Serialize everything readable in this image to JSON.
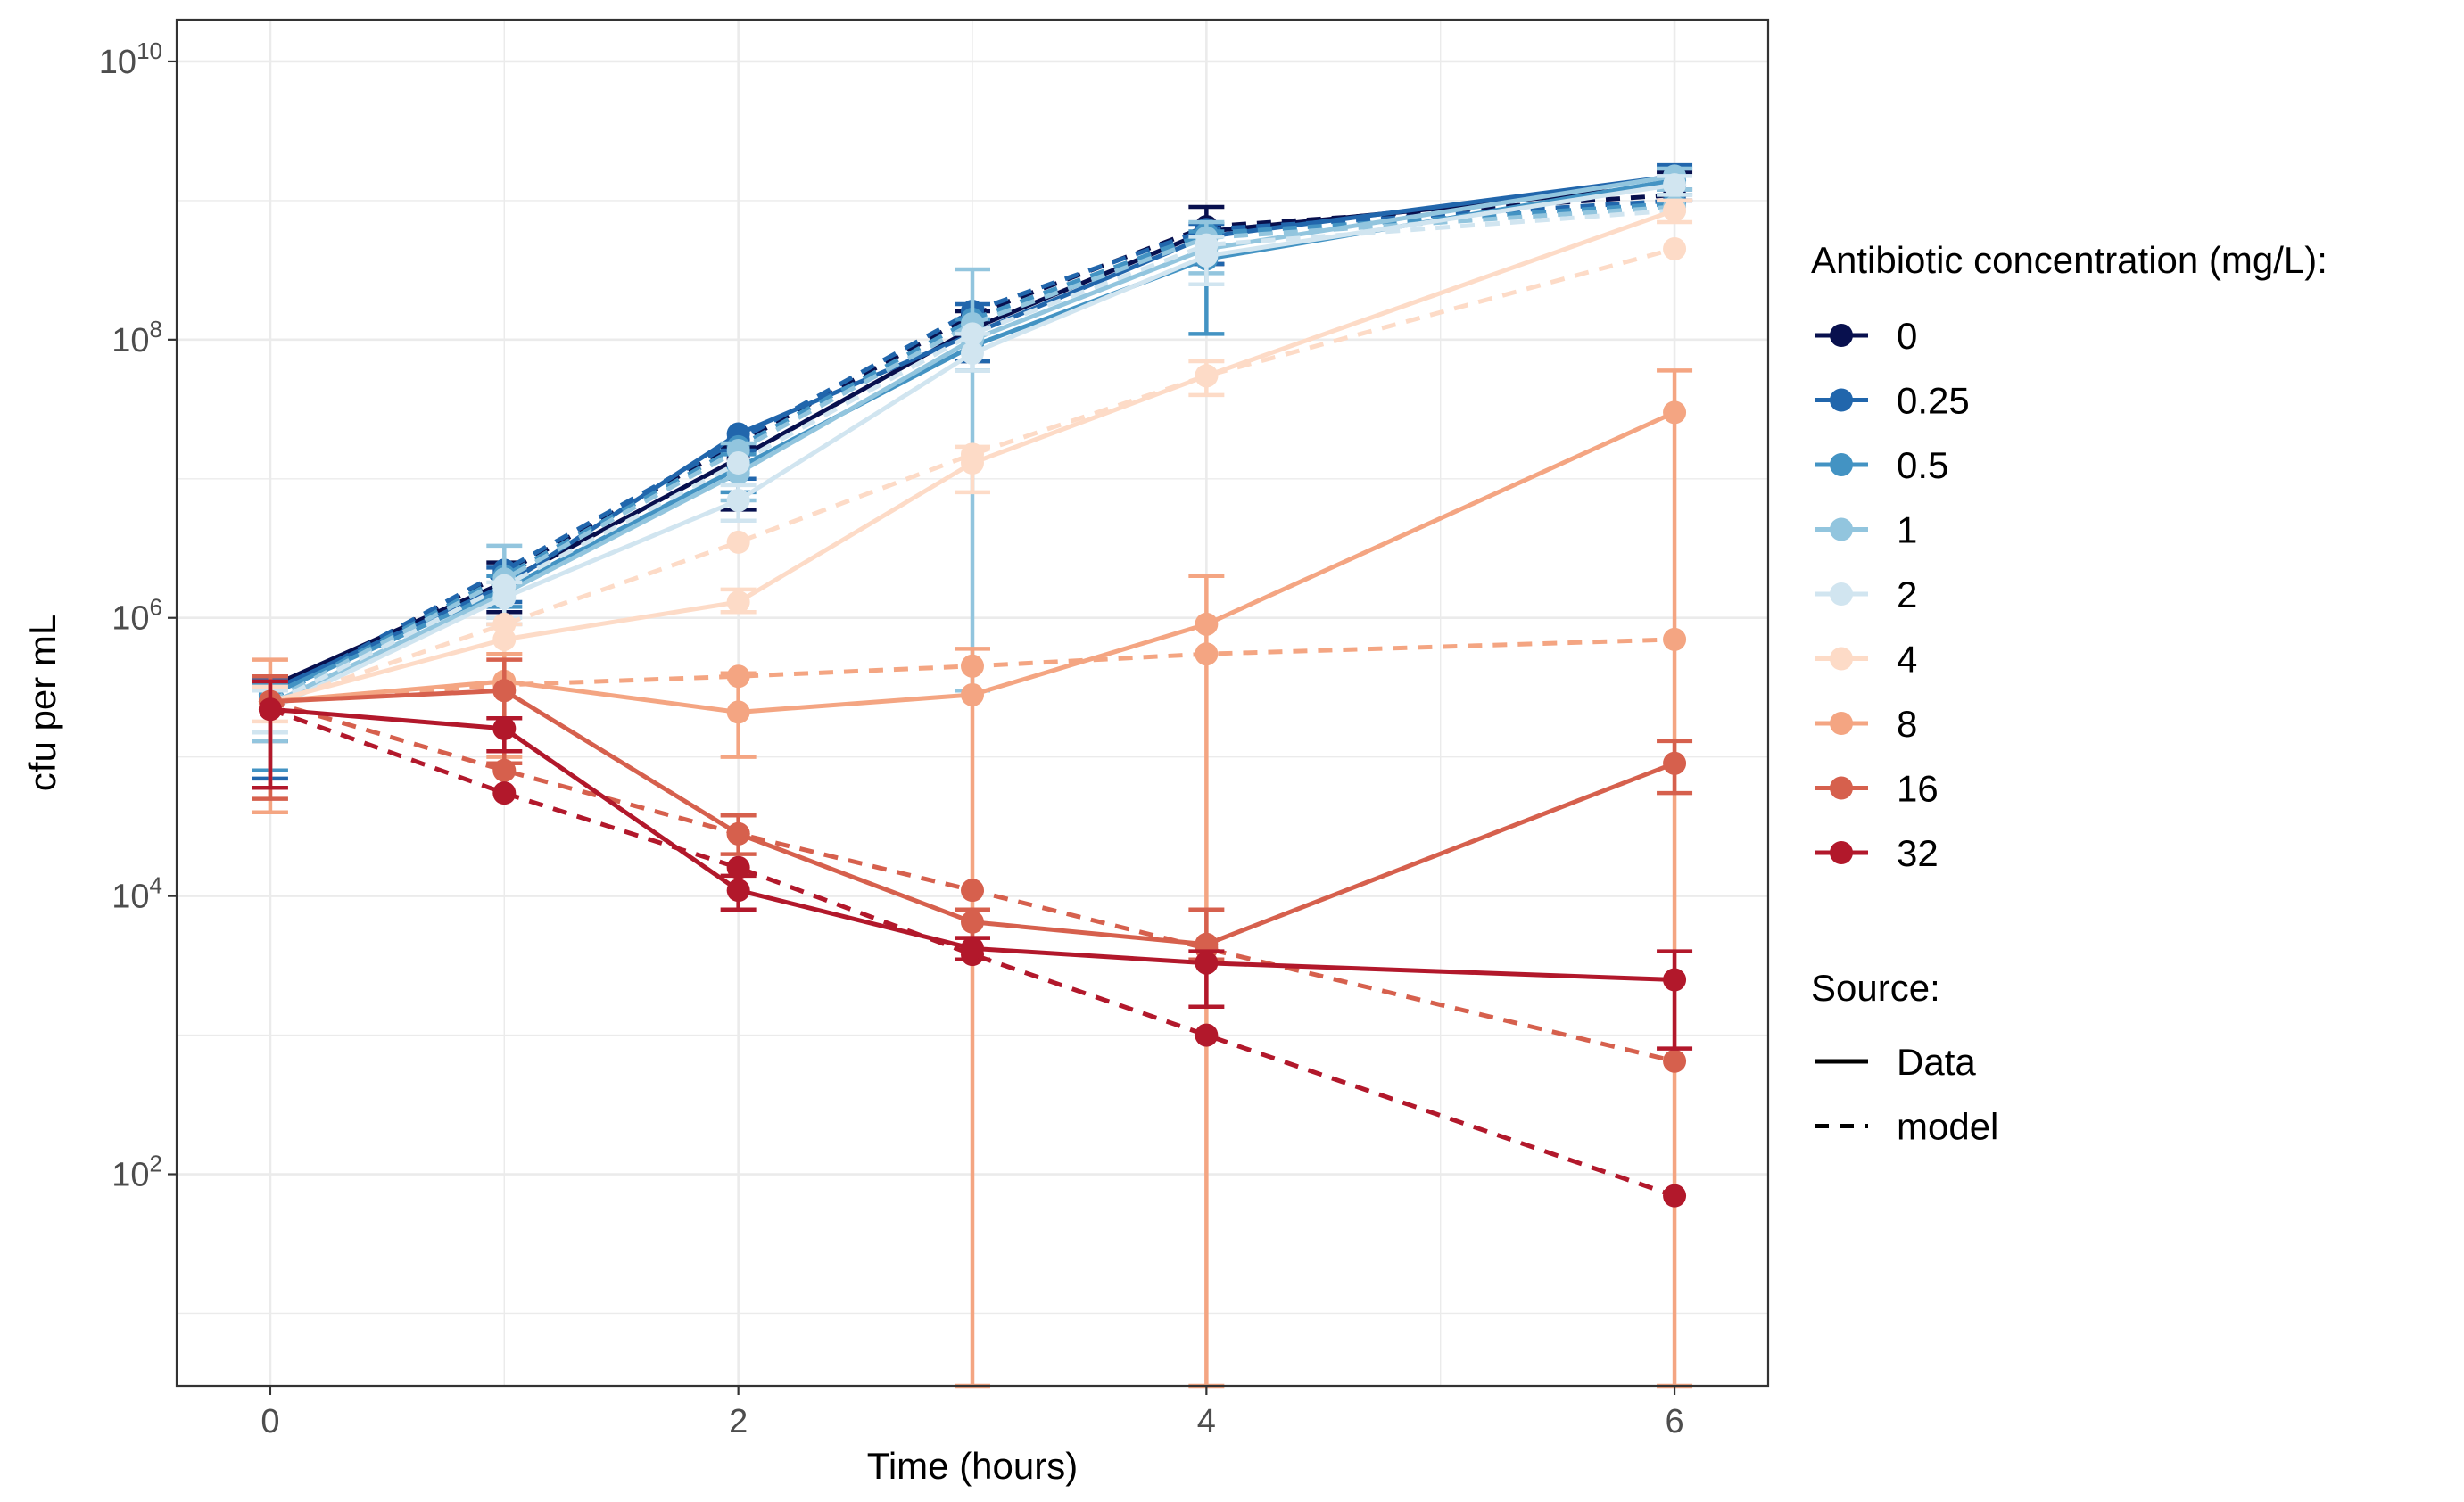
{
  "chart_data": {
    "type": "line",
    "xlabel": "Time (hours)",
    "ylabel": "cfu per mL",
    "x_ticks": [
      "0",
      "2",
      "4",
      "6"
    ],
    "x_tick_values": [
      0,
      2,
      4,
      6
    ],
    "xlim": [
      -0.4,
      6.4
    ],
    "y_scale": "log10",
    "ylim": [
      3,
      20000000000
    ],
    "y_ticks": [
      {
        "base": "10",
        "exp": "2",
        "value": 100
      },
      {
        "base": "10",
        "exp": "4",
        "value": 10000
      },
      {
        "base": "10",
        "exp": "6",
        "value": 1000000
      },
      {
        "base": "10",
        "exp": "8",
        "value": 100000000
      },
      {
        "base": "10",
        "exp": "10",
        "value": 10000000000
      }
    ],
    "grid": true,
    "legend_position": "right",
    "legend": {
      "color_title": "Antibiotic concentration (mg/L):",
      "linetype_title": "Source:",
      "linetype_entries": [
        {
          "label": "Data",
          "dash": "solid"
        },
        {
          "label": "model",
          "dash": "dashed"
        }
      ]
    },
    "times": [
      0,
      1,
      2,
      3,
      4,
      6
    ],
    "series": [
      {
        "name": "0",
        "color": "#08104e",
        "data": [
          320000,
          1800000,
          14000000,
          120000000,
          600000000,
          1300000000
        ],
        "err_lo": [
          130000,
          1100000,
          6000000,
          70000000,
          350000000,
          1000000000
        ],
        "err_hi": [
          380000,
          2500000,
          17000000,
          160000000,
          900000000,
          1600000000
        ],
        "model": [
          280000,
          2100000,
          18000000,
          150000000,
          650000000,
          1100000000
        ]
      },
      {
        "name": "0.25",
        "color": "#2166ac",
        "data": [
          300000,
          1700000,
          21000000,
          110000000,
          550000000,
          1500000000
        ],
        "err_lo": [
          70000,
          1300000,
          10000000,
          70000000,
          350000000,
          1200000000
        ],
        "err_hi": [
          370000,
          2300000,
          16000000,
          180000000,
          680000000,
          1800000000
        ],
        "model": [
          270000,
          2200000,
          19000000,
          160000000,
          620000000,
          1000000000
        ]
      },
      {
        "name": "0.5",
        "color": "#4393c3",
        "data": [
          280000,
          1600000,
          12000000,
          90000000,
          380000000,
          1400000000
        ],
        "err_lo": [
          80000,
          1200000,
          8000000,
          60000000,
          110000000,
          1100000000
        ],
        "err_hi": [
          340000,
          2000000,
          15000000,
          140000000,
          600000000,
          1700000000
        ],
        "model": [
          260000,
          2000000,
          17000000,
          140000000,
          580000000,
          950000000
        ]
      },
      {
        "name": "1",
        "color": "#92c5de",
        "data": [
          240000,
          1500000,
          11000000,
          100000000,
          450000000,
          1500000000
        ],
        "err_lo": [
          130000,
          900000,
          7000000,
          300000,
          300000000,
          1200000000
        ],
        "err_hi": [
          350000,
          3300000,
          18000000,
          320000000,
          700000000,
          1700000000
        ],
        "model": [
          250000,
          1900000,
          16000000,
          130000000,
          540000000,
          900000000
        ]
      },
      {
        "name": "2",
        "color": "#d1e5f0",
        "data": [
          220000,
          1400000,
          7000000,
          80000000,
          400000000,
          1300000000
        ],
        "err_lo": [
          150000,
          1000000,
          5000000,
          60000000,
          250000000,
          1100000000
        ],
        "err_hi": [
          300000,
          1800000,
          9000000,
          110000000,
          550000000,
          1500000000
        ],
        "model": [
          240000,
          1700000,
          13000000,
          110000000,
          480000000,
          850000000
        ]
      },
      {
        "name": "4",
        "color": "#fddbc7",
        "data": [
          250000,
          700000,
          1300000,
          13000000,
          55000000,
          850000000
        ],
        "err_lo": [
          180000,
          550000,
          1100000,
          8000000,
          40000000,
          700000000
        ],
        "err_hi": [
          320000,
          900000,
          1600000,
          17000000,
          70000000,
          1000000000
        ],
        "model": [
          240000,
          900000,
          3500000,
          15000000,
          55000000,
          450000000
        ]
      },
      {
        "name": "8",
        "color": "#f4a582",
        "data": [
          250000,
          350000,
          210000,
          280000,
          900000,
          30000000
        ],
        "err_lo": [
          40000,
          100000,
          100000,
          3,
          3,
          3
        ],
        "err_hi": [
          500000,
          550000,
          400000,
          600000,
          2000000,
          60000000
        ],
        "model": [
          250000,
          330000,
          380000,
          450000,
          550000,
          700000
        ]
      },
      {
        "name": "16",
        "color": "#d6604d",
        "data": [
          250000,
          300000,
          28000,
          6500,
          4500,
          90000
        ],
        "err_lo": [
          50000,
          90000,
          20000,
          5000,
          3500,
          55000
        ],
        "err_hi": [
          380000,
          500000,
          38000,
          8000,
          8000,
          130000
        ],
        "model": [
          250000,
          80000,
          28000,
          11000,
          4200,
          650
        ]
      },
      {
        "name": "32",
        "color": "#b2182b",
        "data": [
          220000,
          160000,
          11000,
          4200,
          3300,
          2500
        ],
        "err_lo": [
          60000,
          110000,
          8000,
          3500,
          1600,
          800
        ],
        "err_hi": [
          350000,
          190000,
          14000,
          5000,
          4000,
          4000
        ],
        "model": [
          220000,
          55000,
          16000,
          3800,
          1000,
          70
        ]
      }
    ]
  }
}
